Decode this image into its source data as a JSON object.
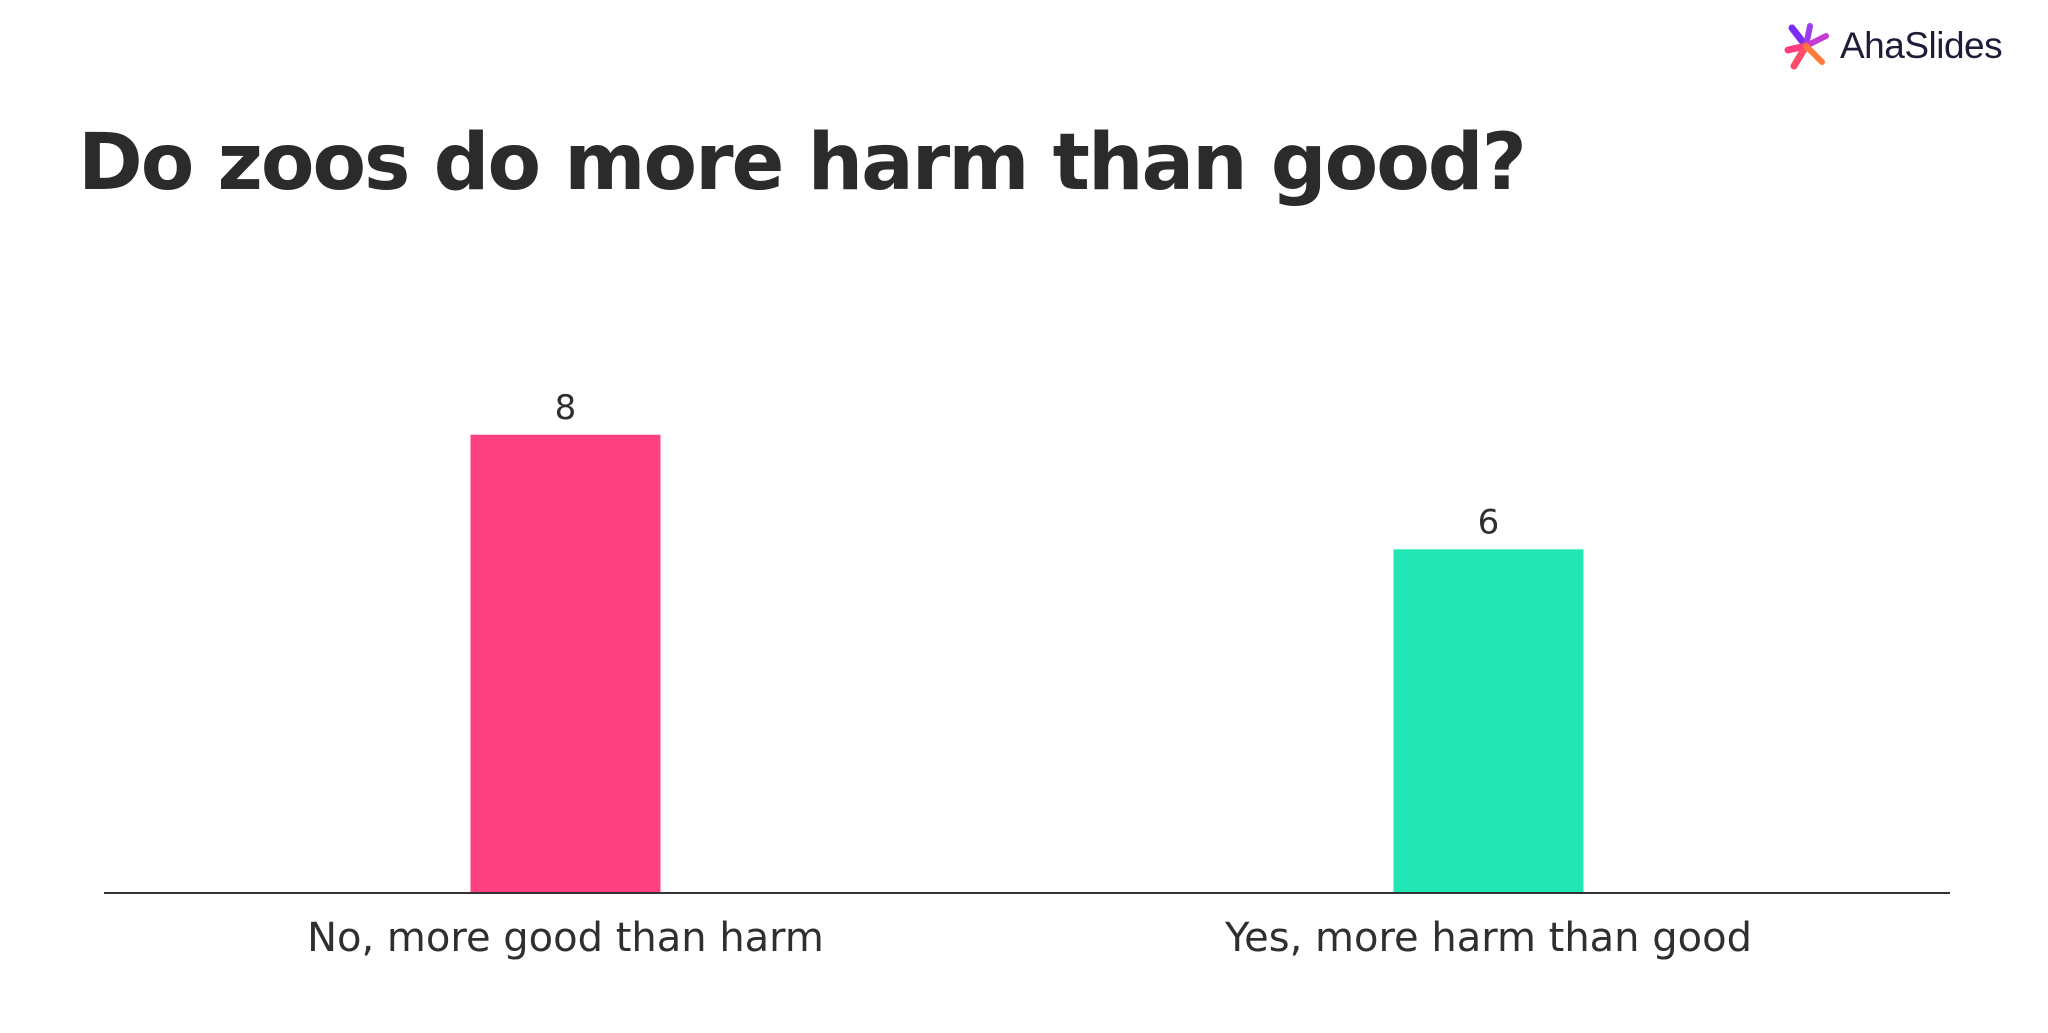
{
  "brand": {
    "name": "AhaSlides",
    "mark_icon": "ahaslides-splash-icon",
    "mark_colors": [
      "#7b2cf5",
      "#ff3d7f",
      "#ff7a3d"
    ]
  },
  "title": "Do zoos do more harm than good?",
  "chart_data": {
    "type": "bar",
    "title": "Do zoos do more harm than good?",
    "xlabel": "",
    "ylabel": "",
    "categories": [
      "No, more good than harm",
      "Yes, more harm than good"
    ],
    "values": [
      8,
      6
    ],
    "colors": [
      "#ff4080",
      "#22e6b4"
    ],
    "data_labels": [
      "8",
      "6"
    ],
    "ylim": [
      0,
      11.4
    ],
    "grid": false,
    "legend": "none"
  }
}
